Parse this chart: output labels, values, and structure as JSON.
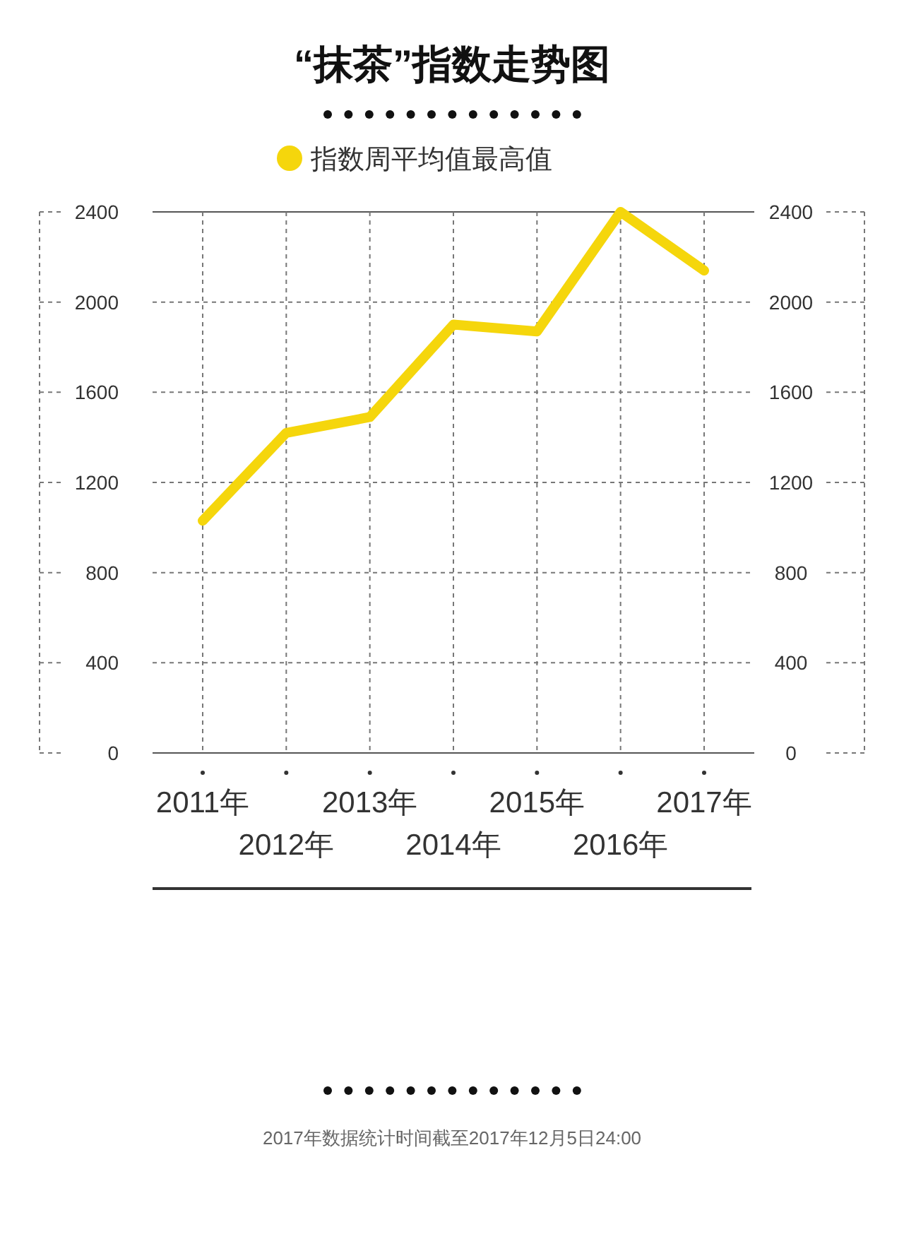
{
  "chart_data": {
    "type": "line",
    "title": "“抹茶”指数走势图",
    "categories": [
      "2011年",
      "2012年",
      "2013年",
      "2014年",
      "2015年",
      "2016年",
      "2017年"
    ],
    "series": [
      {
        "name": "指数周平均值最高值",
        "color": "#f5d60c",
        "values": [
          1030,
          1420,
          1490,
          1900,
          1870,
          2400,
          2140
        ]
      }
    ],
    "ylim": [
      0,
      2400
    ],
    "yticks": [
      0,
      400,
      800,
      1200,
      1600,
      2000,
      2400
    ],
    "y2lim": [
      0,
      2400
    ],
    "y2ticks": [
      0,
      400,
      800,
      1200,
      1600,
      2000,
      2400
    ],
    "grid": true,
    "legend": "top",
    "marker": "none",
    "line_style": "solid",
    "annotations": [
      "2017年数据统计时间截至2017年12月5日24:00"
    ]
  }
}
